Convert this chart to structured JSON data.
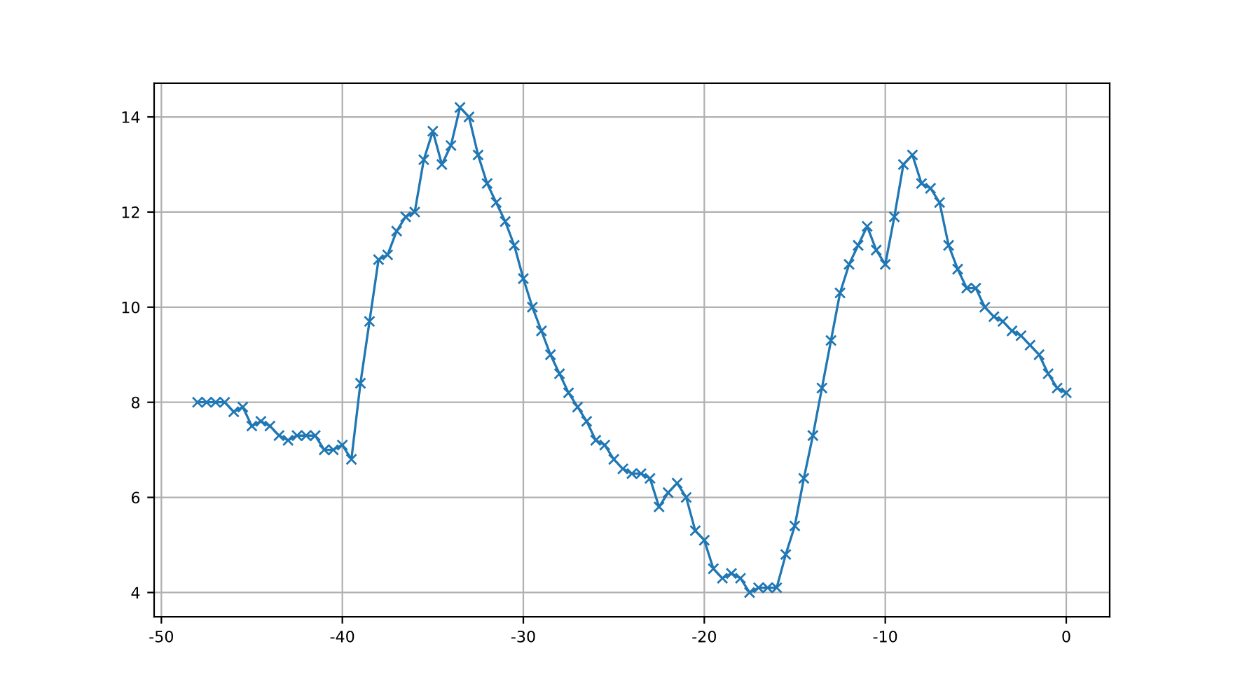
{
  "chart_data": {
    "type": "line",
    "x": [
      -48,
      -47.5,
      -47,
      -46.5,
      -46,
      -45.5,
      -45,
      -44.5,
      -44,
      -43.5,
      -43,
      -42.5,
      -42,
      -41.5,
      -41,
      -40.5,
      -40,
      -39.5,
      -39,
      -38.5,
      -38,
      -37.5,
      -37,
      -36.5,
      -36,
      -35.5,
      -35,
      -34.5,
      -34,
      -33.5,
      -33,
      -32.5,
      -32,
      -31.5,
      -31,
      -30.5,
      -30,
      -29.5,
      -29,
      -28.5,
      -28,
      -27.5,
      -27,
      -26.5,
      -26,
      -25.5,
      -25,
      -24.5,
      -24,
      -23.5,
      -23,
      -22.5,
      -22,
      -21.5,
      -21,
      -20.5,
      -20,
      -19.5,
      -19,
      -18.5,
      -18,
      -17.5,
      -17,
      -16.5,
      -16,
      -15.5,
      -15,
      -14.5,
      -14,
      -13.5,
      -13,
      -12.5,
      -12,
      -11.5,
      -11,
      -10.5,
      -10,
      -9.5,
      -9,
      -8.5,
      -8,
      -7.5,
      -7,
      -6.5,
      -6,
      -5.5,
      -5,
      -4.5,
      -4,
      -3.5,
      -3,
      -2.5,
      -2,
      -1.5,
      -1,
      -0.5,
      0
    ],
    "series": [
      {
        "color": "#1f77b4",
        "values": [
          8.0,
          8.0,
          8.0,
          8.0,
          7.8,
          7.9,
          7.5,
          7.6,
          7.5,
          7.3,
          7.2,
          7.3,
          7.3,
          7.3,
          7.0,
          7.0,
          7.1,
          6.8,
          8.4,
          9.7,
          11.0,
          11.1,
          11.6,
          11.9,
          12.0,
          13.1,
          13.7,
          13.0,
          13.4,
          14.2,
          14.0,
          13.2,
          12.6,
          12.2,
          11.8,
          11.3,
          10.6,
          10.0,
          9.5,
          9.0,
          8.6,
          8.2,
          7.9,
          7.6,
          7.2,
          7.1,
          6.8,
          6.6,
          6.5,
          6.5,
          6.4,
          5.8,
          6.1,
          6.3,
          6.0,
          5.3,
          5.1,
          4.5,
          4.3,
          4.4,
          4.3,
          4.0,
          4.1,
          4.1,
          4.1,
          4.8,
          5.4,
          6.4,
          7.3,
          8.3,
          9.3,
          10.3,
          10.9,
          11.3,
          11.7,
          11.2,
          10.9,
          11.9,
          13.0,
          13.2,
          12.6,
          12.5,
          12.2,
          11.3,
          10.8,
          10.4,
          10.4,
          10.0,
          9.8,
          9.7,
          9.5,
          9.4,
          9.2,
          9.0,
          8.6,
          8.3,
          8.2
        ]
      }
    ],
    "xlim": [
      -50.4,
      2.4
    ],
    "ylim": [
      3.49,
      14.71
    ],
    "xticks": [
      -50,
      -40,
      -30,
      -20,
      -10,
      0
    ],
    "yticks": [
      4,
      6,
      8,
      10,
      12,
      14
    ],
    "grid": true,
    "marker": "cross",
    "line_style": "solid"
  }
}
